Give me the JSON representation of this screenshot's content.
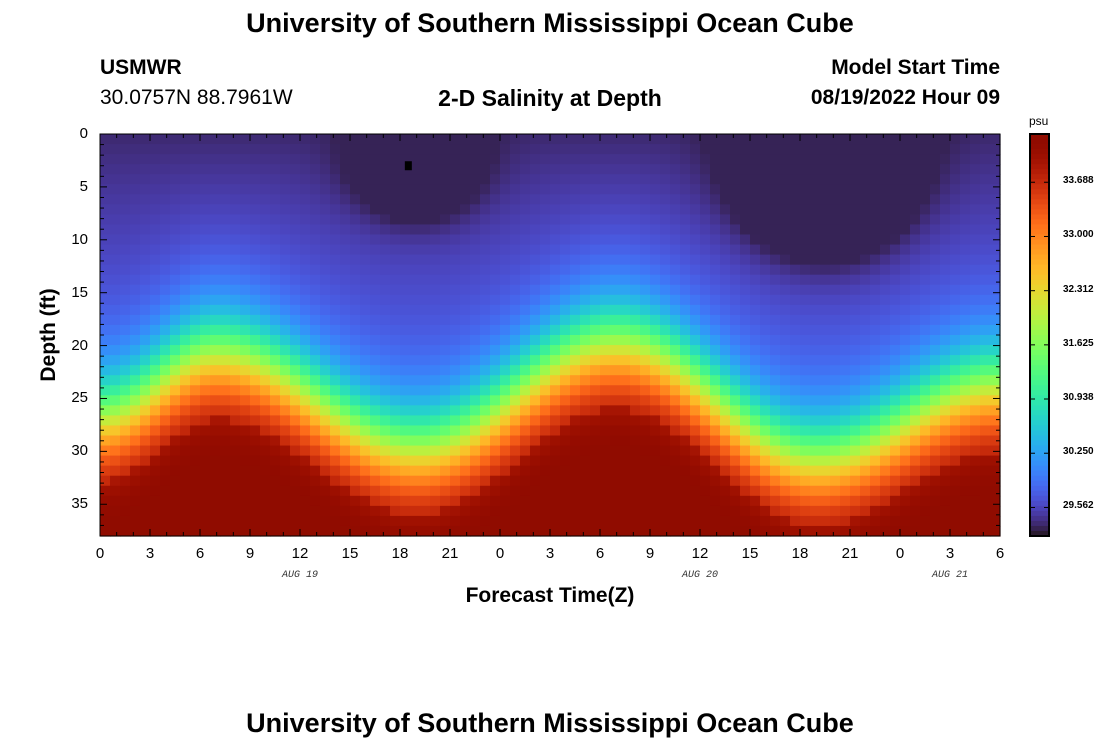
{
  "header": {
    "title_top": "University of Southern Mississippi Ocean Cube",
    "title_bottom": "University of Southern Mississippi Ocean Cube",
    "station": "USMWR",
    "coords": "30.0757N  88.7961W",
    "plot_title": "2-D Salinity at Depth",
    "model_label": "Model Start Time",
    "model_time": "08/19/2022 Hour 09"
  },
  "chart_data": {
    "type": "heatmap",
    "title": "2-D Salinity at Depth",
    "xlabel": "Forecast Time(Z)",
    "ylabel": "Depth (ft)",
    "x_ticks": [
      "0",
      "3",
      "6",
      "9",
      "12",
      "15",
      "18",
      "21",
      "0",
      "3",
      "6",
      "9",
      "12",
      "15",
      "18",
      "21",
      "0",
      "3",
      "6"
    ],
    "x_range_hours": [
      0,
      54
    ],
    "date_labels": [
      {
        "label": "AUG 19",
        "hour": 12
      },
      {
        "label": "AUG 20",
        "hour": 36
      },
      {
        "label": "AUG 21",
        "hour": 51
      }
    ],
    "y_ticks": [
      "0",
      "5",
      "10",
      "15",
      "20",
      "25",
      "30",
      "35"
    ],
    "y_tick_values": [
      0,
      5,
      10,
      15,
      20,
      25,
      30,
      35
    ],
    "ylim": [
      0,
      38
    ],
    "y_inverted": true,
    "colorbar": {
      "unit": "psu",
      "min": 29.2,
      "max": 34.3,
      "labels": [
        "33.688",
        "33.000",
        "32.312",
        "31.625",
        "30.938",
        "30.250",
        "29.562"
      ],
      "colormap": "turbo"
    },
    "field_description": {
      "surface_fresh_minima_hours": [
        19,
        43.5
      ],
      "isohaline_depth_samples": [
        {
          "hour": 0,
          "depth_ft": 27
        },
        {
          "hour": 7,
          "depth_ft": 21
        },
        {
          "hour": 19,
          "depth_ft": 30
        },
        {
          "hour": 31,
          "depth_ft": 20
        },
        {
          "hour": 43,
          "depth_ft": 31
        },
        {
          "hour": 54,
          "depth_ft": 24
        }
      ],
      "marker": {
        "hour": 18.5,
        "depth_ft": 3
      }
    }
  },
  "colors": {
    "background": "#ffffff",
    "frame": "#000000"
  }
}
